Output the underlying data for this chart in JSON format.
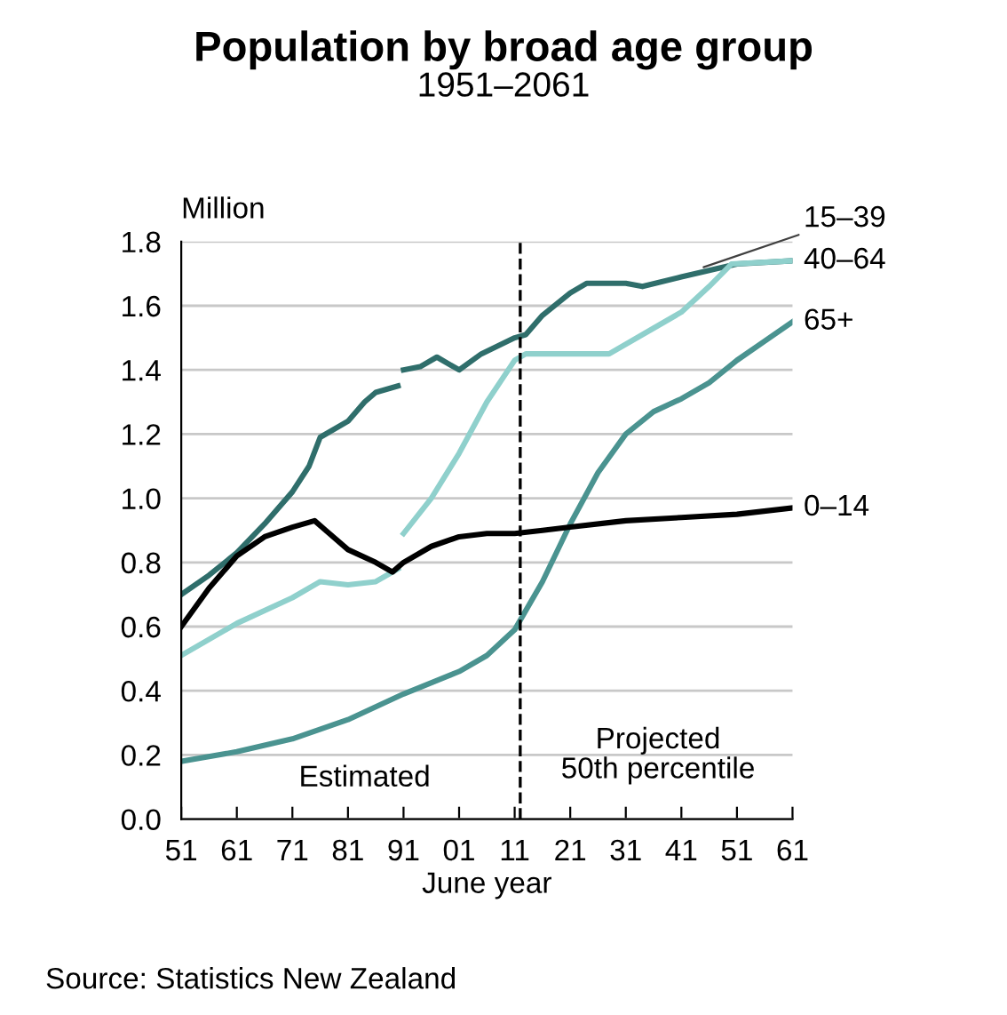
{
  "chart_data": {
    "type": "line",
    "title": "Population by broad age group",
    "subtitle": "1951–2061",
    "xlabel": "June year",
    "ylabel": "Million",
    "xlim": [
      1951,
      2061
    ],
    "xticks": [
      {
        "value": 1951,
        "label": "51"
      },
      {
        "value": 1961,
        "label": "61"
      },
      {
        "value": 1971,
        "label": "71"
      },
      {
        "value": 1981,
        "label": "81"
      },
      {
        "value": 1991,
        "label": "91"
      },
      {
        "value": 2001,
        "label": "01"
      },
      {
        "value": 2011,
        "label": "11"
      },
      {
        "value": 2021,
        "label": "21"
      },
      {
        "value": 2031,
        "label": "31"
      },
      {
        "value": 2041,
        "label": "41"
      },
      {
        "value": 2051,
        "label": "51"
      },
      {
        "value": 2061,
        "label": "61"
      }
    ],
    "ylim": [
      0,
      1.8
    ],
    "yticks": [
      {
        "value": 0,
        "label": "0.0"
      },
      {
        "value": 0.2,
        "label": "0.2"
      },
      {
        "value": 0.4,
        "label": "0.4"
      },
      {
        "value": 0.6,
        "label": "0.6"
      },
      {
        "value": 0.8,
        "label": "0.8"
      },
      {
        "value": 1.0,
        "label": "1.0"
      },
      {
        "value": 1.2,
        "label": "1.2"
      },
      {
        "value": 1.4,
        "label": "1.4"
      },
      {
        "value": 1.6,
        "label": "1.6"
      },
      {
        "value": 1.8,
        "label": "1.8"
      }
    ],
    "grid": "y",
    "legend": false,
    "marker": "none",
    "line_style": "solid",
    "series": [
      {
        "name": "15–39",
        "color": "#2f6e6b",
        "x": [
          1951,
          1956,
          1961,
          1966,
          1971,
          1974,
          1976,
          1981,
          1984,
          1986,
          1990,
          1990.5,
          1991,
          1994,
          1997,
          2001,
          2005,
          2011,
          2013,
          2016,
          2021,
          2024,
          2031,
          2034,
          2041,
          2046,
          2051,
          2061
        ],
        "values": [
          0.7,
          0.76,
          0.83,
          0.92,
          1.02,
          1.1,
          1.19,
          1.24,
          1.3,
          1.33,
          1.35,
          null,
          1.4,
          1.41,
          1.44,
          1.4,
          1.45,
          1.5,
          1.51,
          1.57,
          1.64,
          1.67,
          1.67,
          1.66,
          1.69,
          1.71,
          1.73,
          1.74
        ]
      },
      {
        "name": "40–64",
        "color": "#8fd0cc",
        "x": [
          1951,
          1961,
          1971,
          1976,
          1981,
          1986,
          1990,
          1990.5,
          1991,
          1996,
          2001,
          2006,
          2011,
          2013,
          2021,
          2028,
          2036,
          2041,
          2046,
          2050,
          2061
        ],
        "values": [
          0.51,
          0.61,
          0.69,
          0.74,
          0.73,
          0.74,
          0.78,
          null,
          0.89,
          1.0,
          1.14,
          1.3,
          1.43,
          1.45,
          1.45,
          1.45,
          1.53,
          1.58,
          1.66,
          1.73,
          1.74
        ]
      },
      {
        "name": "65+",
        "color": "#4a9390",
        "x": [
          1951,
          1961,
          1971,
          1981,
          1991,
          2001,
          2006,
          2011,
          2016,
          2021,
          2026,
          2031,
          2036,
          2041,
          2046,
          2051,
          2056,
          2061
        ],
        "values": [
          0.18,
          0.21,
          0.25,
          0.31,
          0.39,
          0.46,
          0.51,
          0.59,
          0.74,
          0.92,
          1.08,
          1.2,
          1.27,
          1.31,
          1.36,
          1.43,
          1.49,
          1.55
        ]
      },
      {
        "name": "0–14",
        "color": "#000000",
        "x": [
          1951,
          1956,
          1961,
          1966,
          1971,
          1975,
          1977,
          1981,
          1986,
          1989,
          1991,
          1996,
          2001,
          2006,
          2011,
          2016,
          2021,
          2031,
          2041,
          2051,
          2061
        ],
        "values": [
          0.6,
          0.72,
          0.82,
          0.88,
          0.91,
          0.93,
          0.9,
          0.84,
          0.8,
          0.77,
          0.8,
          0.85,
          0.88,
          0.89,
          0.89,
          0.9,
          0.91,
          0.93,
          0.94,
          0.95,
          0.97
        ]
      }
    ],
    "ref_lines": [
      {
        "axis": "x",
        "value": 2012,
        "color": "#000000",
        "line_style": "dashed"
      }
    ],
    "annotations": [
      "Estimated",
      "Projected\n50th percentile",
      "Source: Statistics New Zealand"
    ]
  }
}
